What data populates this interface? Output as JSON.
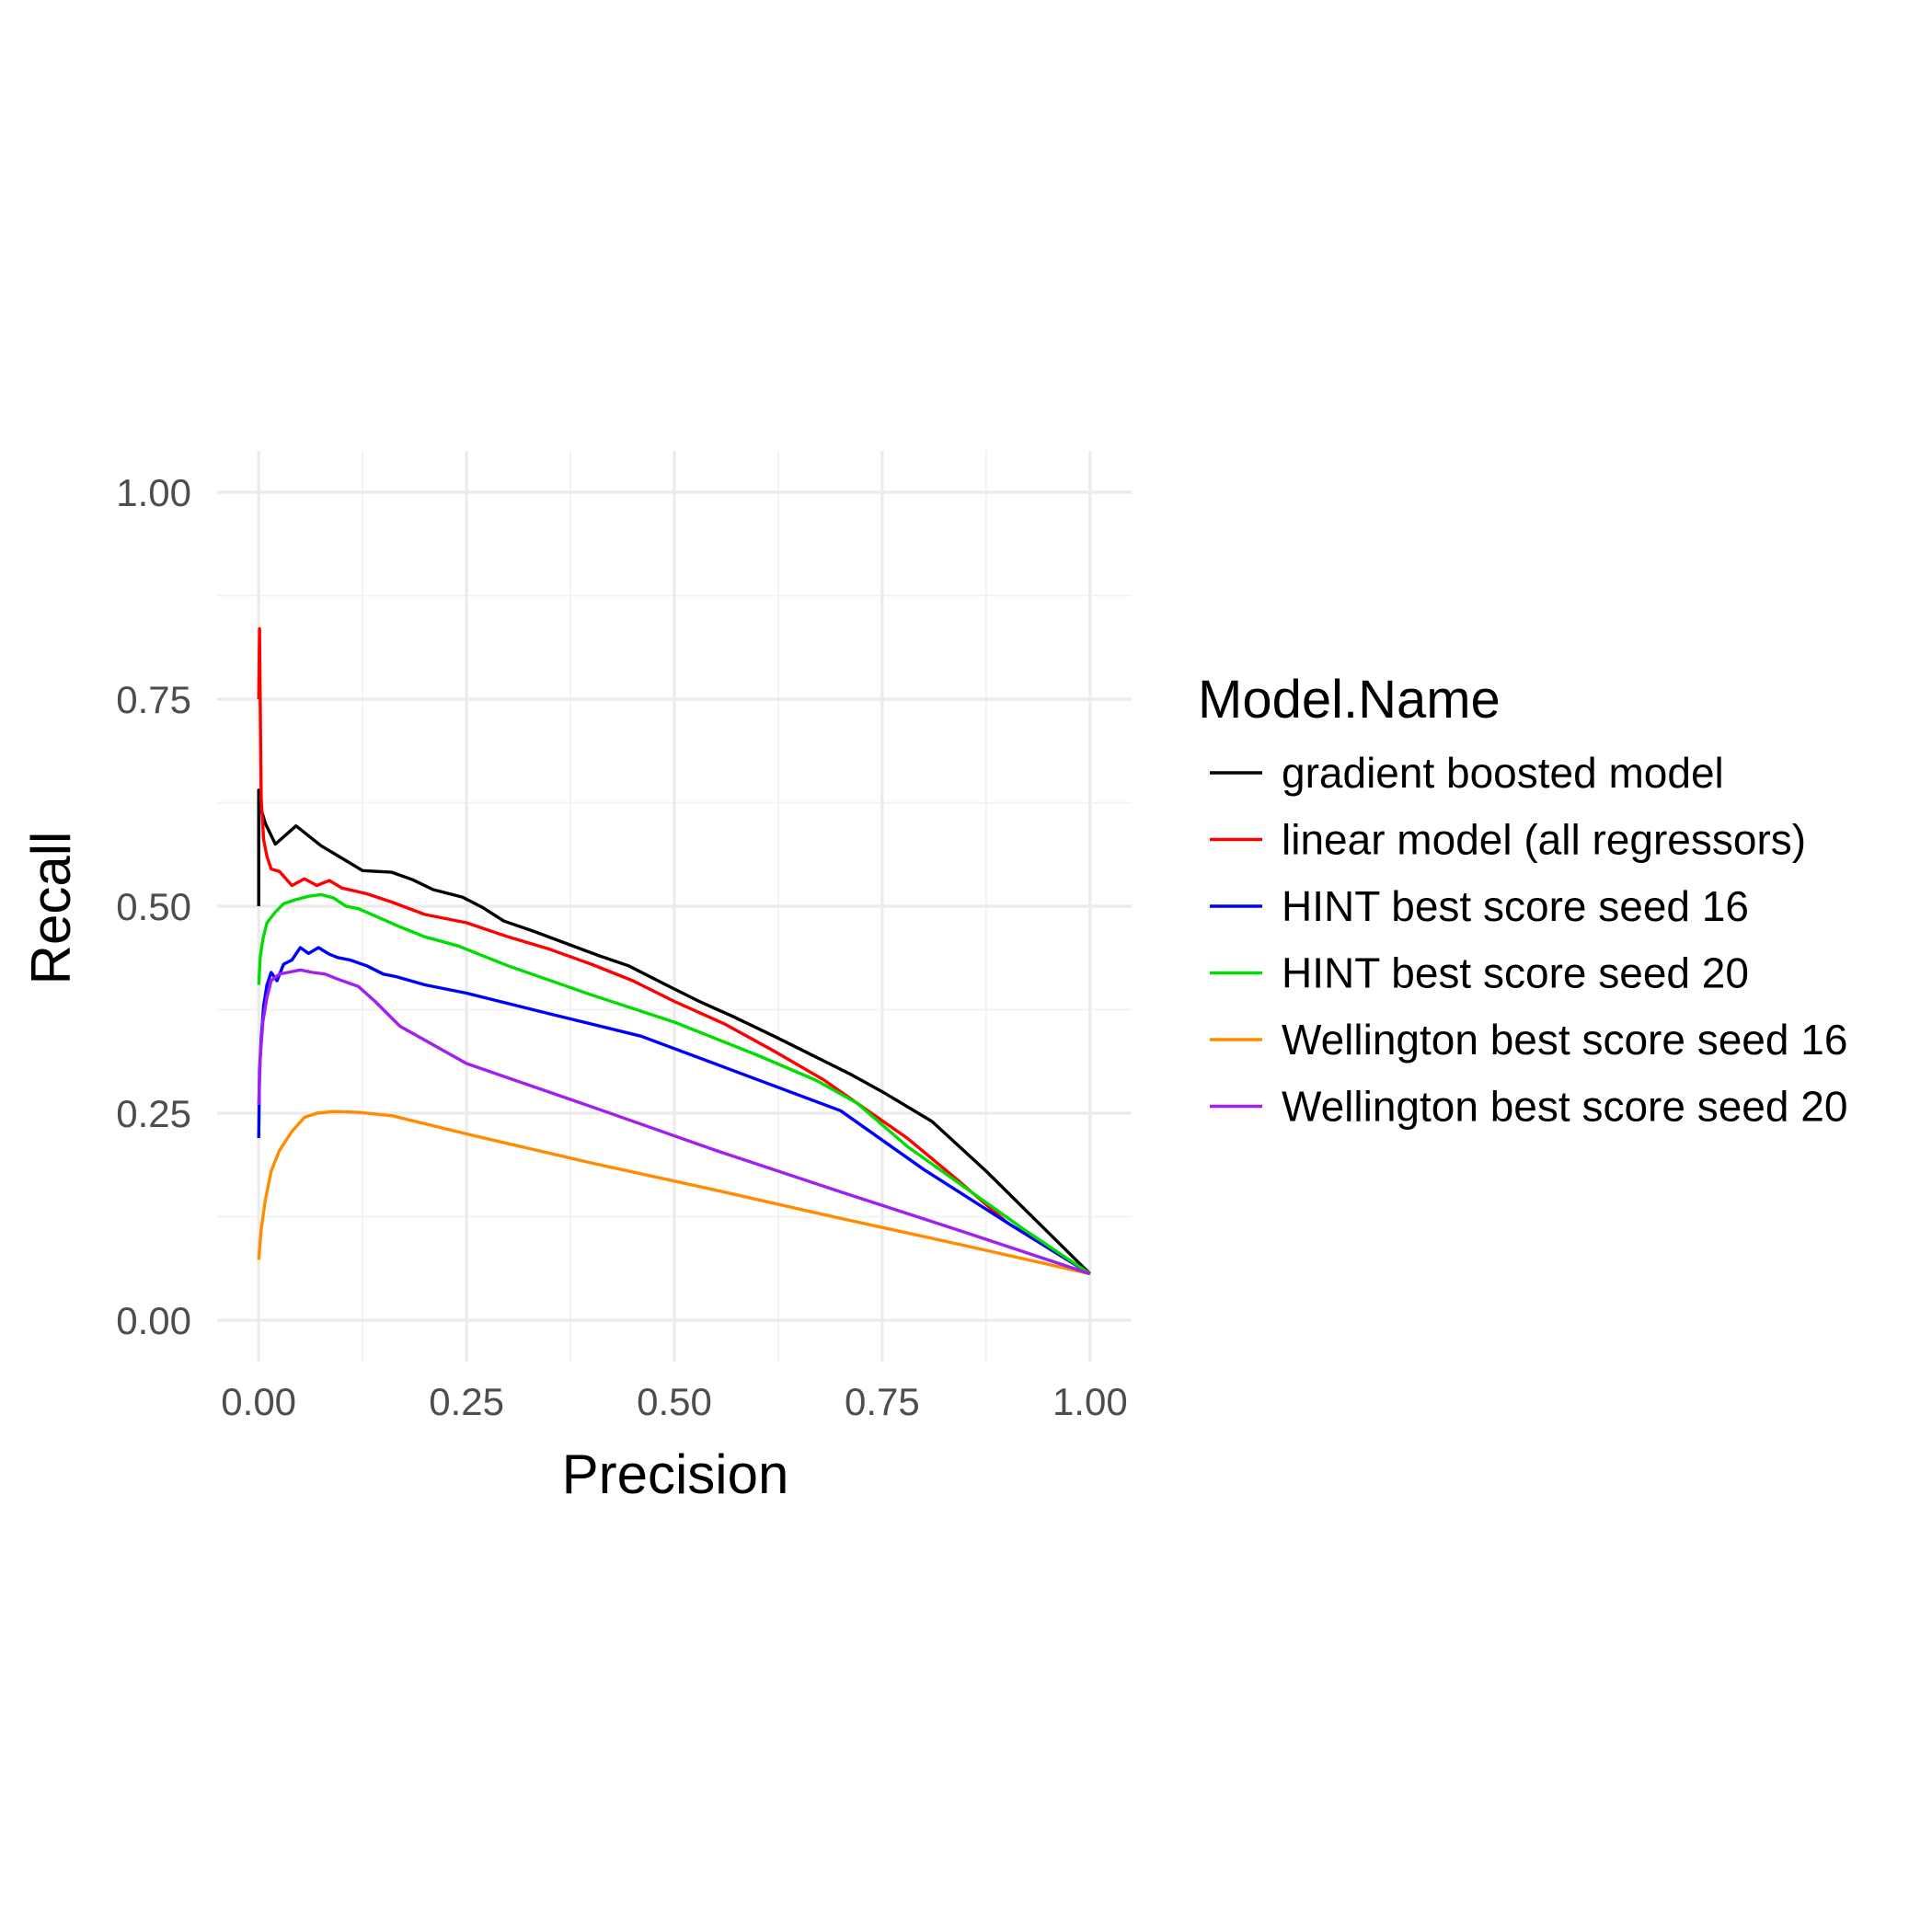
{
  "chart_data": {
    "type": "line",
    "title": "",
    "xlabel": "Precision",
    "ylabel": "Recall",
    "xlim": [
      -0.05,
      1.05
    ],
    "ylim": [
      -0.05,
      1.05
    ],
    "x_ticks": [
      0,
      0.25,
      0.5,
      0.75,
      1
    ],
    "x_tick_labels": [
      "0.00",
      "0.25",
      "0.50",
      "0.75",
      "1.00"
    ],
    "y_ticks": [
      0,
      0.25,
      0.5,
      0.75,
      1
    ],
    "y_tick_labels": [
      "0.00",
      "0.25",
      "0.50",
      "0.75",
      "1.00"
    ],
    "grid": true,
    "legend_title": "Model.Name",
    "legend_position": "right",
    "series": [
      {
        "name": "gradient boosted model",
        "color": "#000000",
        "x": [
          0.0,
          0.0,
          0.002,
          0.008,
          0.02,
          0.045,
          0.075,
          0.105,
          0.125,
          0.16,
          0.185,
          0.21,
          0.245,
          0.27,
          0.295,
          0.33,
          0.37,
          0.41,
          0.445,
          0.49,
          0.53,
          0.57,
          0.62,
          0.66,
          0.71,
          0.75,
          0.81,
          0.875,
          1.0
        ],
        "y": [
          0.5,
          0.64,
          0.62,
          0.6,
          0.575,
          0.597,
          0.573,
          0.555,
          0.543,
          0.541,
          0.532,
          0.52,
          0.511,
          0.498,
          0.482,
          0.47,
          0.455,
          0.44,
          0.428,
          0.405,
          0.385,
          0.367,
          0.343,
          0.323,
          0.298,
          0.276,
          0.24,
          0.18,
          0.056
        ]
      },
      {
        "name": "linear model (all regressors)",
        "color": "#ff0000",
        "x": [
          0.0,
          0.001,
          0.003,
          0.006,
          0.01,
          0.015,
          0.025,
          0.04,
          0.055,
          0.07,
          0.085,
          0.1,
          0.13,
          0.16,
          0.2,
          0.25,
          0.3,
          0.35,
          0.4,
          0.45,
          0.5,
          0.56,
          0.62,
          0.68,
          0.73,
          0.78,
          0.84,
          0.9,
          1.0
        ],
        "y": [
          0.75,
          0.835,
          0.63,
          0.58,
          0.56,
          0.545,
          0.542,
          0.525,
          0.533,
          0.525,
          0.531,
          0.522,
          0.515,
          0.505,
          0.49,
          0.48,
          0.463,
          0.448,
          0.43,
          0.41,
          0.385,
          0.358,
          0.325,
          0.29,
          0.255,
          0.22,
          0.17,
          0.118,
          0.056
        ]
      },
      {
        "name": "HINT best score seed 16",
        "color": "#0000ff",
        "x": [
          0.0,
          0.001,
          0.003,
          0.006,
          0.01,
          0.015,
          0.022,
          0.03,
          0.04,
          0.05,
          0.06,
          0.072,
          0.085,
          0.095,
          0.11,
          0.13,
          0.15,
          0.165,
          0.2,
          0.25,
          0.35,
          0.46,
          0.58,
          0.7,
          0.8,
          0.9,
          1.0
        ],
        "y": [
          0.22,
          0.3,
          0.34,
          0.38,
          0.405,
          0.42,
          0.41,
          0.43,
          0.435,
          0.45,
          0.443,
          0.45,
          0.442,
          0.438,
          0.435,
          0.428,
          0.418,
          0.415,
          0.405,
          0.395,
          0.37,
          0.343,
          0.298,
          0.253,
          0.182,
          0.118,
          0.056
        ]
      },
      {
        "name": "HINT best score seed 20",
        "color": "#00dd00",
        "x": [
          0.0,
          0.002,
          0.005,
          0.01,
          0.02,
          0.03,
          0.045,
          0.06,
          0.075,
          0.09,
          0.105,
          0.12,
          0.145,
          0.17,
          0.2,
          0.24,
          0.3,
          0.4,
          0.5,
          0.6,
          0.67,
          0.72,
          0.78,
          0.85,
          0.92,
          1.0
        ],
        "y": [
          0.405,
          0.44,
          0.46,
          0.48,
          0.493,
          0.503,
          0.508,
          0.512,
          0.514,
          0.51,
          0.5,
          0.497,
          0.486,
          0.475,
          0.463,
          0.452,
          0.428,
          0.393,
          0.36,
          0.32,
          0.29,
          0.262,
          0.21,
          0.16,
          0.11,
          0.056
        ]
      },
      {
        "name": "Wellington best score seed 16",
        "color": "#ff8c00",
        "x": [
          0.0,
          0.003,
          0.008,
          0.015,
          0.025,
          0.04,
          0.055,
          0.07,
          0.09,
          0.12,
          0.16,
          0.25,
          0.4,
          0.55,
          0.7,
          0.85,
          1.0
        ],
        "y": [
          0.073,
          0.11,
          0.145,
          0.18,
          0.205,
          0.228,
          0.245,
          0.25,
          0.252,
          0.251,
          0.247,
          0.225,
          0.19,
          0.157,
          0.123,
          0.09,
          0.056
        ]
      },
      {
        "name": "Wellington best score seed 20",
        "color": "#a020f0",
        "x": [
          0.0,
          0.002,
          0.005,
          0.01,
          0.015,
          0.025,
          0.035,
          0.05,
          0.065,
          0.08,
          0.095,
          0.12,
          0.14,
          0.17,
          0.25,
          0.4,
          0.55,
          0.7,
          0.85,
          1.0
        ],
        "y": [
          0.26,
          0.32,
          0.36,
          0.39,
          0.41,
          0.418,
          0.42,
          0.423,
          0.42,
          0.418,
          0.412,
          0.403,
          0.385,
          0.355,
          0.31,
          0.258,
          0.205,
          0.155,
          0.106,
          0.056
        ]
      }
    ]
  }
}
